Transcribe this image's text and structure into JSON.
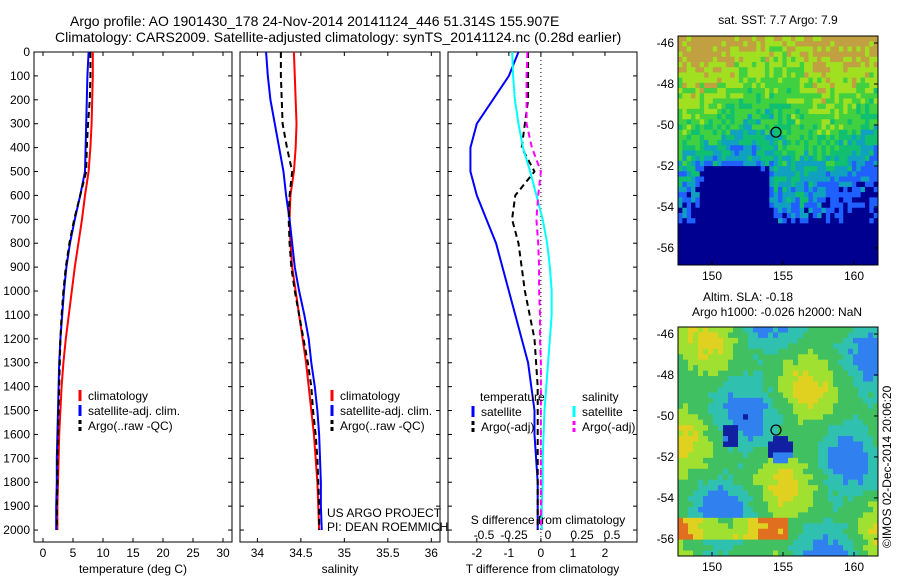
{
  "header": {
    "line1": "Argo profile: AO 1901430_178 24-Nov-2014 20141124_446 51.314S 155.907E",
    "line2": "Climatology: CARS2009. Satellite-adjusted climatology: synTS_20141124.nc (0.28d earlier)"
  },
  "colors": {
    "climatology": "#ff0000",
    "satellite": "#0000ff",
    "argo": "#000000",
    "salinity_satellite": "#00ffff",
    "salinity_argo": "#ff00ff"
  },
  "depth_axis": {
    "range": [
      0,
      2050
    ],
    "ticks": [
      "0",
      "100",
      "200",
      "300",
      "400",
      "500",
      "600",
      "700",
      "800",
      "900",
      "1000",
      "1100",
      "1200",
      "1300",
      "1400",
      "1500",
      "1600",
      "1700",
      "1800",
      "1900",
      "2000"
    ]
  },
  "legend_profiles": {
    "climatology": "climatology",
    "satellite": "satellite-adj. clim.",
    "argo": "Argo(..raw -QC)"
  },
  "panel3_legend": {
    "temperature_header": "temperature",
    "salinity_header": "salinity",
    "satellite": "satellite",
    "argo": "Argo(-adj)"
  },
  "credits": {
    "project": "US ARGO PROJECT",
    "pi": "PI: DEAN ROEMMICH"
  },
  "map_top": {
    "title": "sat. SST: 7.7  Argo: 7.9",
    "yticks": [
      "-46",
      "-48",
      "-50",
      "-52",
      "-54",
      "-56"
    ],
    "xticks": [
      "150",
      "155",
      "160"
    ]
  },
  "map_bottom": {
    "title1": "Altim. SLA: -0.18",
    "title2": "Argo h1000: -0.026  h2000: NaN",
    "yticks": [
      "-46",
      "-48",
      "-50",
      "-52",
      "-54",
      "-56"
    ],
    "xticks": [
      "150",
      "155",
      "160"
    ]
  },
  "stamp": "©IMOS 02-Dec-2014 20:06:20",
  "chart_data": [
    {
      "type": "line",
      "xlabel": "temperature (deg C)",
      "xticks": [
        "0",
        "5",
        "10",
        "15",
        "20",
        "25",
        "30"
      ],
      "xlim": [
        -1.5,
        31.5
      ],
      "ylim": [
        2050,
        0
      ],
      "series": [
        {
          "name": "climatology",
          "x": [
            8.3,
            8.3,
            8.2,
            8.1,
            7.9,
            7.6,
            7.0,
            6.5,
            5.9,
            5.3,
            4.8,
            4.3,
            3.8,
            3.4,
            3.1,
            2.9,
            2.7,
            2.6,
            2.5,
            2.4,
            2.4
          ],
          "y": [
            0,
            100,
            200,
            300,
            400,
            500,
            600,
            700,
            800,
            900,
            1000,
            1100,
            1200,
            1300,
            1400,
            1500,
            1600,
            1700,
            1800,
            1900,
            2000
          ]
        },
        {
          "name": "satellite-adj. clim.",
          "x": [
            7.6,
            7.4,
            7.3,
            7.2,
            7.1,
            7.0,
            6.2,
            5.3,
            4.5,
            3.9,
            3.5,
            3.2,
            2.9,
            2.7,
            2.6,
            2.5,
            2.4,
            2.3,
            2.3,
            2.2,
            2.2
          ],
          "y": [
            0,
            100,
            200,
            300,
            400,
            500,
            600,
            700,
            800,
            900,
            1000,
            1100,
            1200,
            1300,
            1400,
            1500,
            1600,
            1700,
            1800,
            1900,
            2000
          ]
        },
        {
          "name": "Argo(..raw -QC)",
          "x": [
            7.9,
            7.9,
            7.8,
            7.5,
            7.3,
            7.2,
            6.2,
            5.2,
            4.4,
            3.8,
            3.4,
            3.1,
            2.9,
            2.8,
            2.7,
            2.6,
            2.5,
            2.4,
            2.4,
            2.3,
            2.3
          ],
          "y": [
            0,
            100,
            200,
            300,
            400,
            500,
            600,
            700,
            800,
            900,
            1000,
            1100,
            1200,
            1300,
            1400,
            1500,
            1600,
            1700,
            1800,
            1900,
            2000
          ]
        }
      ]
    },
    {
      "type": "line",
      "xlabel": "salinity",
      "xticks": [
        "34",
        "34.5",
        "35",
        "35.5",
        "36"
      ],
      "xlim": [
        33.8,
        36.1
      ],
      "ylim": [
        2050,
        0
      ],
      "series": [
        {
          "name": "climatology",
          "x": [
            34.42,
            34.43,
            34.44,
            34.45,
            34.44,
            34.42,
            34.38,
            34.37,
            34.38,
            34.4,
            34.44,
            34.48,
            34.52,
            34.56,
            34.59,
            34.62,
            34.65,
            34.67,
            34.69,
            34.7,
            34.71
          ],
          "y": [
            0,
            100,
            200,
            300,
            400,
            500,
            600,
            700,
            800,
            900,
            1000,
            1100,
            1200,
            1300,
            1400,
            1500,
            1600,
            1700,
            1800,
            1900,
            2000
          ]
        },
        {
          "name": "satellite-adj. clim.",
          "x": [
            34.1,
            34.12,
            34.15,
            34.2,
            34.25,
            34.3,
            34.33,
            34.37,
            34.4,
            34.43,
            34.48,
            34.54,
            34.59,
            34.62,
            34.66,
            34.69,
            34.71,
            34.72,
            34.73,
            34.73,
            34.74
          ],
          "y": [
            0,
            100,
            200,
            300,
            400,
            500,
            600,
            700,
            800,
            900,
            1000,
            1100,
            1200,
            1300,
            1400,
            1500,
            1600,
            1700,
            1800,
            1900,
            2000
          ]
        },
        {
          "name": "Argo(..raw -QC)",
          "x": [
            34.27,
            34.27,
            34.28,
            34.29,
            34.34,
            34.4,
            34.37,
            34.36,
            34.37,
            34.39,
            34.43,
            34.48,
            34.53,
            34.58,
            34.62,
            34.64,
            34.67,
            34.69,
            34.7,
            34.71,
            34.71
          ],
          "y": [
            0,
            100,
            200,
            300,
            400,
            500,
            600,
            700,
            800,
            900,
            1000,
            1100,
            1200,
            1300,
            1400,
            1500,
            1600,
            1700,
            1800,
            1900,
            2000
          ]
        }
      ]
    },
    {
      "type": "line",
      "xlabel": "T difference from climatology",
      "xlabel_top": "S difference from climatology",
      "xticks": [
        "-2",
        "-1",
        "0",
        "1",
        "2"
      ],
      "xticks_salinity": [
        "-0.5",
        "-0.25",
        "0",
        "0.25",
        "0.5"
      ],
      "xlim": [
        -2.9,
        3.0
      ],
      "ylim": [
        2050,
        0
      ],
      "series": [
        {
          "name": "temperature satellite",
          "x": [
            -0.7,
            -1.0,
            -1.5,
            -2.0,
            -2.2,
            -2.2,
            -2.0,
            -1.7,
            -1.4,
            -1.2,
            -1.0,
            -0.8,
            -0.6,
            -0.4,
            -0.3,
            -0.2,
            -0.2,
            -0.15,
            -0.1,
            -0.1,
            -0.1
          ],
          "y": [
            0,
            100,
            200,
            300,
            400,
            500,
            600,
            700,
            800,
            900,
            1000,
            1100,
            1200,
            1300,
            1400,
            1500,
            1600,
            1700,
            1800,
            1900,
            2000
          ]
        },
        {
          "name": "temperature Argo(-adj)",
          "x": [
            -0.4,
            -0.4,
            -0.4,
            -0.5,
            -0.6,
            -0.2,
            -0.8,
            -0.9,
            -0.7,
            -0.6,
            -0.5,
            -0.35,
            -0.2,
            -0.15,
            -0.1,
            -0.1,
            -0.1,
            -0.1,
            -0.1,
            -0.1,
            -0.1
          ],
          "y": [
            0,
            100,
            200,
            300,
            400,
            500,
            600,
            700,
            800,
            900,
            1000,
            1100,
            1200,
            1300,
            1400,
            1500,
            1600,
            1700,
            1800,
            1900,
            2000
          ]
        },
        {
          "name": "salinity satellite",
          "x": [
            -0.32,
            -0.31,
            -0.29,
            -0.25,
            -0.2,
            -0.12,
            -0.05,
            0.02,
            0.07,
            0.1,
            0.12,
            0.12,
            0.1,
            0.08,
            0.06,
            0.04,
            0.03,
            0.02,
            0.02,
            0.01,
            0.01
          ],
          "y": [
            0,
            100,
            200,
            300,
            400,
            500,
            600,
            700,
            800,
            900,
            1000,
            1100,
            1200,
            1300,
            1400,
            1500,
            1600,
            1700,
            1800,
            1900,
            2000
          ]
        },
        {
          "name": "salinity Argo(-adj)",
          "x": [
            -0.15,
            -0.16,
            -0.16,
            -0.16,
            -0.1,
            0.0,
            -0.03,
            -0.05,
            -0.03,
            -0.02,
            -0.02,
            -0.01,
            -0.01,
            0.0,
            0.0,
            0.0,
            0.0,
            0.0,
            0.0,
            0.0,
            0.0
          ],
          "y": [
            0,
            100,
            200,
            300,
            400,
            500,
            600,
            700,
            800,
            900,
            1000,
            1100,
            1200,
            1300,
            1400,
            1500,
            1600,
            1700,
            1800,
            1900,
            2000
          ]
        }
      ]
    }
  ]
}
